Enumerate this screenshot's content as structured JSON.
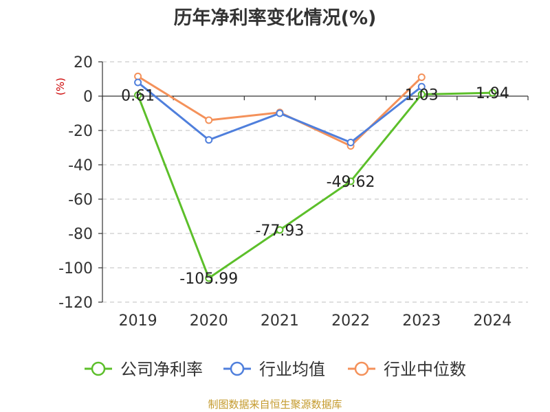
{
  "chart_data": {
    "type": "line",
    "title": "历年净利率变化情况(%)",
    "ylabel": "(%)",
    "categories": [
      "2019",
      "2020",
      "2021",
      "2022",
      "2023",
      "2024"
    ],
    "ylim": [
      -120,
      20
    ],
    "yticks": [
      20,
      0,
      -20,
      -40,
      -60,
      -80,
      -100,
      -120
    ],
    "grid": true,
    "legend_position": "bottom",
    "series": [
      {
        "name": "公司净利率",
        "color": "#5cbf2a",
        "values": [
          0.61,
          -105.99,
          -77.93,
          -49.62,
          1.03,
          1.94
        ],
        "labels": [
          "0.61",
          "-105.99",
          "-77.93",
          "-49.62",
          "1.03",
          "1.94"
        ]
      },
      {
        "name": "行业均值",
        "color": "#4f7fdc",
        "values": [
          8,
          -25.5,
          -10,
          -27,
          5.5,
          null
        ]
      },
      {
        "name": "行业中位数",
        "color": "#f4915a",
        "values": [
          11.5,
          -14,
          -9.5,
          -29,
          11,
          null
        ]
      }
    ]
  },
  "source_text": "制图数据来自恒生聚源数据库"
}
